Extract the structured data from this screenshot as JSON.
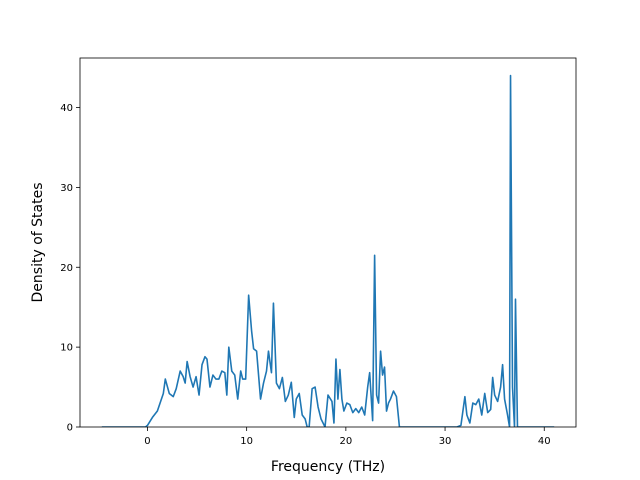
{
  "chart_data": {
    "type": "line",
    "title": "",
    "xlabel": "Frequency (THz)",
    "ylabel": "Density of States",
    "xlim": [
      -6.8,
      43.2
    ],
    "ylim": [
      0,
      46.2
    ],
    "xticks": [
      0,
      10,
      20,
      30,
      40
    ],
    "xtick_labels": [
      "0",
      "10",
      "20",
      "30",
      "40"
    ],
    "yticks": [
      0,
      10,
      20,
      30,
      40
    ],
    "ytick_labels": [
      "0",
      "10",
      "20",
      "30",
      "40"
    ],
    "grid": false,
    "legend": "none",
    "series": [
      {
        "color": "#1f77b4",
        "x": [
          -4.6,
          -0.2,
          0.0,
          0.5,
          1.0,
          1.6,
          1.8,
          2.2,
          2.6,
          2.9,
          3.3,
          3.6,
          3.8,
          4.0,
          4.3,
          4.6,
          4.9,
          5.2,
          5.5,
          5.8,
          6.0,
          6.3,
          6.6,
          6.9,
          7.2,
          7.5,
          7.8,
          8.0,
          8.2,
          8.5,
          8.8,
          9.1,
          9.4,
          9.6,
          9.9,
          10.2,
          10.5,
          10.7,
          11.0,
          11.4,
          11.7,
          12.0,
          12.2,
          12.5,
          12.7,
          13.0,
          13.3,
          13.6,
          13.9,
          14.2,
          14.5,
          14.8,
          15.0,
          15.3,
          15.6,
          15.9,
          16.1,
          16.3,
          16.6,
          16.9,
          17.2,
          17.5,
          17.9,
          18.2,
          18.6,
          18.8,
          19.0,
          19.2,
          19.4,
          19.6,
          19.8,
          20.1,
          20.4,
          20.7,
          21.0,
          21.3,
          21.6,
          21.9,
          22.2,
          22.4,
          22.7,
          22.9,
          23.1,
          23.3,
          23.5,
          23.7,
          23.9,
          24.1,
          24.3,
          24.5,
          24.8,
          25.1,
          25.4,
          25.6,
          25.7,
          26.0,
          30.8,
          31.2,
          31.6,
          31.8,
          32.0,
          32.2,
          32.5,
          32.8,
          33.1,
          33.4,
          33.7,
          34.0,
          34.3,
          34.6,
          34.8,
          35.0,
          35.3,
          35.6,
          35.8,
          36.0,
          36.3,
          36.5,
          36.6,
          36.8,
          37.0,
          37.1,
          37.3,
          37.5,
          41.0
        ],
        "y": [
          0,
          0,
          0.2,
          1.2,
          2.0,
          4.2,
          6.0,
          4.2,
          3.8,
          4.8,
          7.0,
          6.3,
          5.5,
          8.2,
          6.3,
          5.0,
          6.3,
          4.0,
          7.8,
          8.8,
          8.5,
          5.0,
          6.5,
          6.0,
          6.0,
          7.0,
          6.8,
          4.0,
          10.0,
          7.0,
          6.5,
          3.5,
          7.0,
          6.0,
          6.0,
          16.5,
          12.0,
          9.8,
          9.5,
          3.5,
          5.5,
          7.0,
          9.5,
          6.8,
          15.5,
          5.5,
          4.8,
          6.2,
          3.2,
          4.0,
          5.6,
          1.2,
          3.5,
          4.2,
          1.5,
          1.0,
          0,
          0,
          4.8,
          5.0,
          2.5,
          1.0,
          0,
          4.0,
          3.2,
          0.5,
          8.5,
          3.5,
          7.2,
          3.5,
          2.0,
          3.0,
          2.8,
          1.8,
          2.3,
          1.8,
          2.5,
          1.5,
          5.0,
          6.8,
          0.8,
          21.5,
          4.0,
          3.0,
          9.5,
          6.5,
          7.5,
          2.0,
          3.0,
          3.5,
          4.5,
          3.8,
          0,
          0,
          0,
          0,
          0,
          0,
          0.2,
          2.0,
          3.8,
          1.5,
          0.5,
          3.0,
          2.8,
          3.5,
          1.5,
          4.2,
          1.8,
          2.2,
          6.2,
          4.0,
          3.2,
          5.0,
          7.8,
          3.5,
          1.5,
          0,
          44.0,
          5.0,
          0,
          16.0,
          0,
          0,
          0
        ]
      }
    ]
  }
}
